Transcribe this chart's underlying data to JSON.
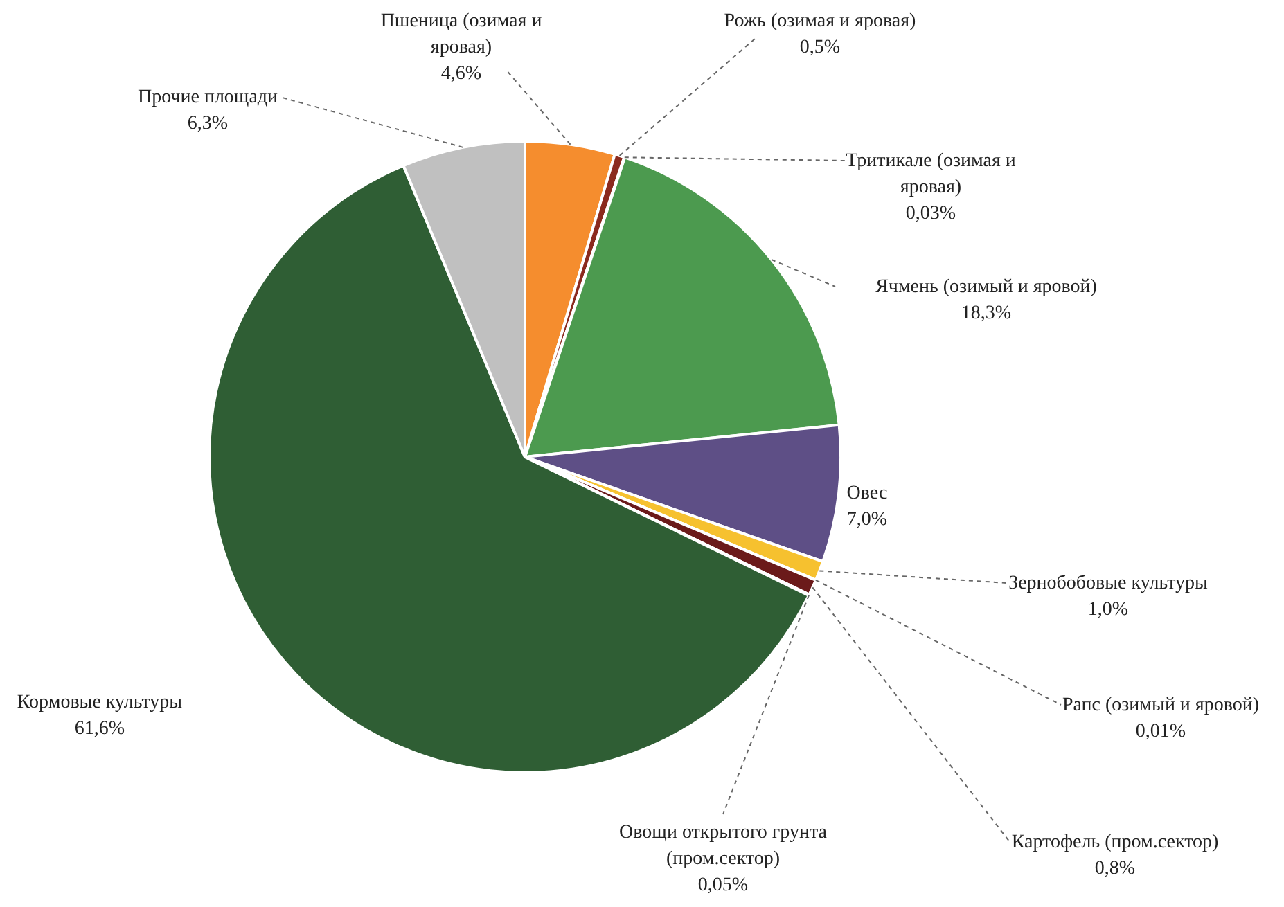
{
  "chart_data": {
    "type": "pie",
    "categories": [
      "Пшеница (озимая и яровая)",
      "Рожь (озимая и яровая)",
      "Тритикале (озимая и яровая)",
      "Ячмень (озимый и яровой)",
      "Овес",
      "Зернобобовые культуры",
      "Рапс (озимый и яровой)",
      "Картофель (пром.сектор)",
      "Овощи открытого грунта (пром.сектор)",
      "Кормовые культуры",
      "Прочие площади"
    ],
    "values": [
      4.6,
      0.5,
      0.03,
      18.3,
      7.0,
      1.0,
      0.01,
      0.8,
      0.05,
      61.6,
      6.3
    ],
    "value_labels": [
      "4,6%",
      "0,5%",
      "0,03%",
      "18,3%",
      "7,0%",
      "1,0%",
      "0,01%",
      "0,8%",
      "0,05%",
      "61,6%",
      "6,3%"
    ],
    "colors": [
      "#f58d2e",
      "#8b2a1e",
      "#c0504d",
      "#4c9a4f",
      "#5e4f86",
      "#f6c12f",
      "#7f2020",
      "#6b1a1a",
      "#2e6b35",
      "#2f5e34",
      "#c0c0c0"
    ]
  }
}
